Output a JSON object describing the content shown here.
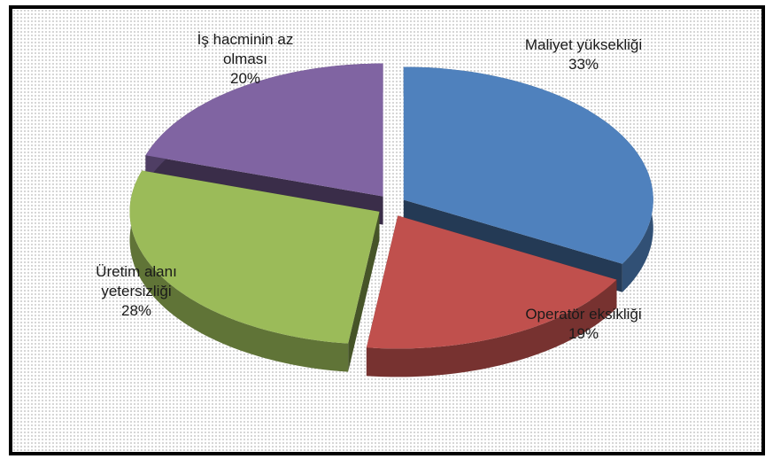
{
  "chart_data": {
    "type": "pie",
    "categories": [
      "Maliyet yüksekliği",
      "Operatör eksikliği",
      "Üretim alanı yetersizliği",
      "İş hacminin az olması"
    ],
    "values": [
      33,
      19,
      28,
      20
    ],
    "value_labels": [
      "33%",
      "19%",
      "28%",
      "20%"
    ],
    "colors": [
      "#4f81bd",
      "#c0504d",
      "#9bbb59",
      "#8064a2"
    ]
  }
}
